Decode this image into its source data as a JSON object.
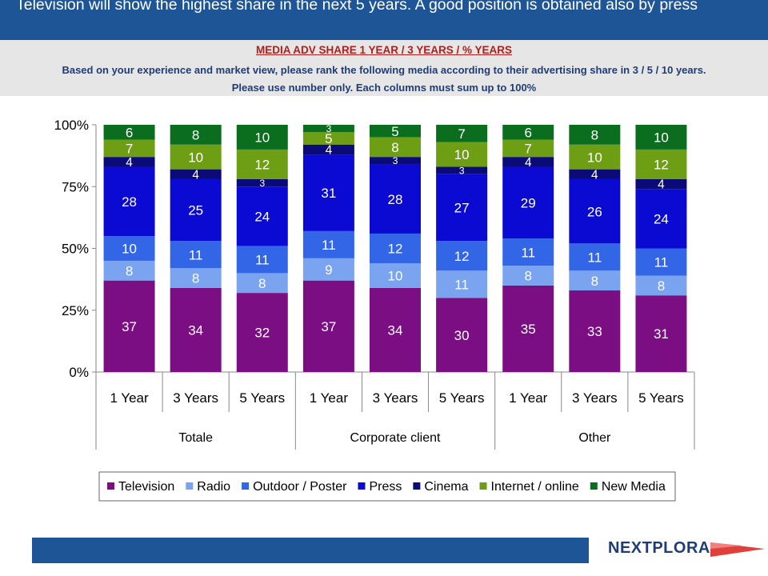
{
  "header": {
    "headline": "Television will show the highest share in the next 5 years. A good position is obtained also by press"
  },
  "subheader": {
    "title": "MEDIA ADV SHARE  1 YEAR / 3 YEARS / % YEARS",
    "line1": "Based on your experience and market view, please rank the following media according to their advertising share in 3 / 5 / 10 years.",
    "line2": "Please use number only. Each columns must sum up to 100%"
  },
  "logo": {
    "text": "NEXTPLORA"
  },
  "chart_data": {
    "type": "bar",
    "stacked": true,
    "ylim": [
      0,
      100
    ],
    "yticks": [
      "0%",
      "25%",
      "50%",
      "75%",
      "100%"
    ],
    "groups": [
      {
        "label": "Totale",
        "categories": [
          "1 Year",
          "3 Years",
          "5 Years"
        ]
      },
      {
        "label": "Corporate client",
        "categories": [
          "1 Year",
          "3 Years",
          "5 Years"
        ]
      },
      {
        "label": "Other",
        "categories": [
          "1 Year",
          "3 Years",
          "5 Years"
        ]
      }
    ],
    "series": [
      {
        "name": "Television",
        "color": "#7b0e82",
        "values": [
          37,
          34,
          32,
          37,
          34,
          30,
          35,
          33,
          31
        ]
      },
      {
        "name": "Radio",
        "color": "#7aa3f0",
        "values": [
          8,
          8,
          8,
          9,
          10,
          11,
          8,
          8,
          8
        ]
      },
      {
        "name": "Outdoor / Poster",
        "color": "#3366e6",
        "values": [
          10,
          11,
          11,
          11,
          12,
          12,
          11,
          11,
          11
        ]
      },
      {
        "name": "Press",
        "color": "#0a0ad2",
        "values": [
          28,
          25,
          24,
          31,
          28,
          27,
          29,
          26,
          24
        ]
      },
      {
        "name": "Cinema",
        "color": "#0a0a78",
        "values": [
          4,
          4,
          3,
          4,
          3,
          3,
          4,
          4,
          4
        ]
      },
      {
        "name": "Internet / online",
        "color": "#6e9e14",
        "values": [
          7,
          10,
          12,
          5,
          8,
          10,
          7,
          10,
          12
        ]
      },
      {
        "name": "New Media",
        "color": "#0a6e1e",
        "values": [
          6,
          8,
          10,
          3,
          5,
          7,
          6,
          8,
          10
        ]
      }
    ],
    "legend_position": "bottom",
    "grid": false
  }
}
